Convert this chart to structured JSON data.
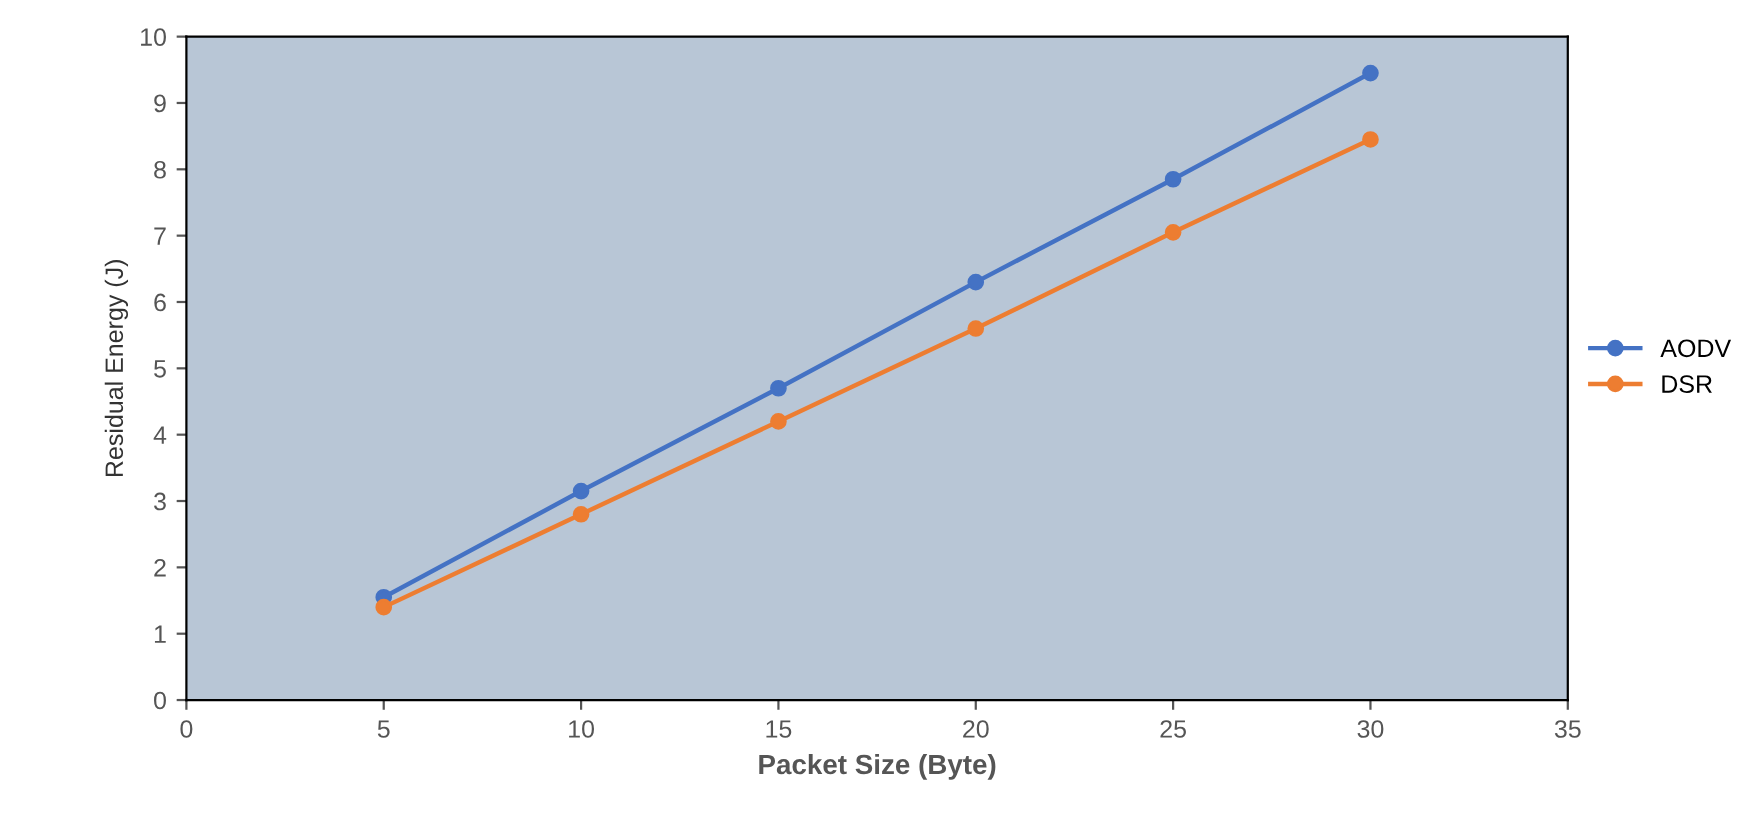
{
  "chart_data": {
    "type": "line",
    "xlabel": "Packet Size (Byte)",
    "ylabel": "Residual Energy (J)",
    "x": [
      5,
      10,
      15,
      20,
      25,
      30
    ],
    "series": [
      {
        "name": "AODV",
        "color": "#4472c4",
        "values": [
          1.55,
          3.15,
          4.7,
          6.3,
          7.85,
          9.45
        ]
      },
      {
        "name": "DSR",
        "color": "#ed7d31",
        "values": [
          1.4,
          2.8,
          4.2,
          5.6,
          7.05,
          8.45
        ]
      }
    ],
    "xlim": [
      0,
      35
    ],
    "xticks": [
      0,
      5,
      10,
      15,
      20,
      25,
      30,
      35
    ],
    "ylim": [
      0,
      10
    ],
    "yticks": [
      0,
      1,
      2,
      3,
      4,
      5,
      6,
      7,
      8,
      9,
      10
    ],
    "grid": false,
    "legend": "right",
    "marker": "circle",
    "line_style": "solid"
  }
}
